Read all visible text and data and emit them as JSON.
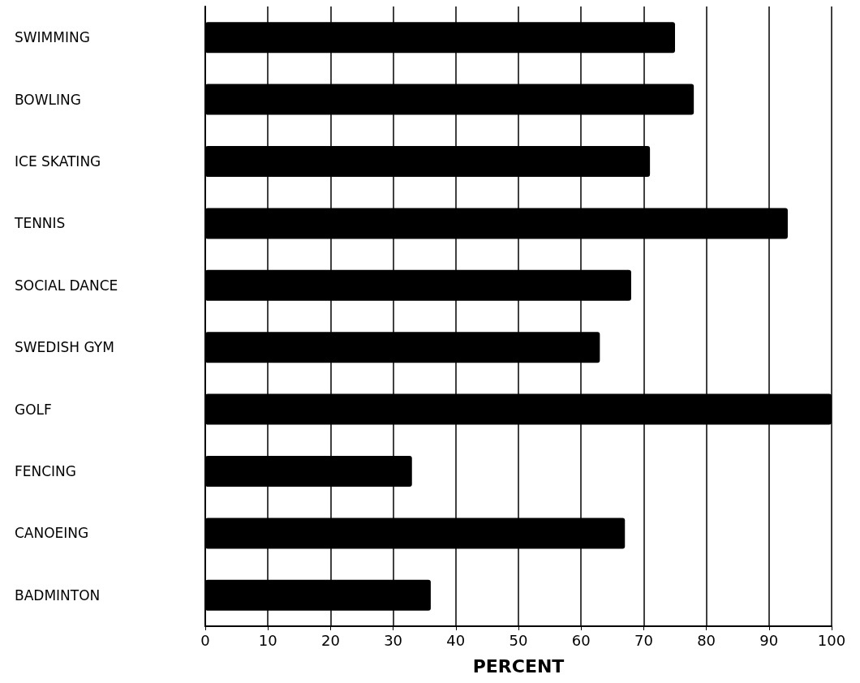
{
  "chart_data": {
    "type": "bar",
    "orientation": "horizontal",
    "xlabel": "PERCENT",
    "categories": [
      "SWIMMING",
      "BOWLING",
      "ICE SKATING",
      "TENNIS",
      "SOCIAL DANCE",
      "SWEDISH GYM",
      "GOLF",
      "FENCING",
      "CANOEING",
      "BADMINTON"
    ],
    "values": [
      75,
      78,
      71,
      93,
      68,
      63,
      100,
      33,
      67,
      36
    ],
    "color": "#000000",
    "xlim": [
      0,
      100
    ],
    "xticks": [
      0,
      10,
      20,
      30,
      40,
      50,
      60,
      70,
      80,
      90,
      100
    ],
    "grid": "x"
  }
}
